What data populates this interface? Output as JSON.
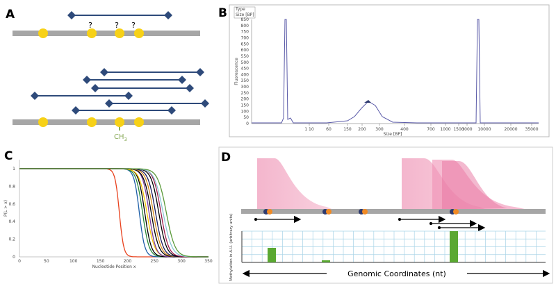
{
  "panels": {
    "a": {
      "label": "A",
      "question_marks": [
        "?",
        "?",
        "?"
      ],
      "methyl": {
        "base": "CH",
        "subscript": "3"
      }
    },
    "b": {
      "label": "B",
      "legend": [
        "Type",
        "Size [BP]"
      ],
      "y_label": "Fluorescence",
      "x_label": "Size [BP]",
      "yticks": [
        "0",
        "50",
        "100",
        "150",
        "200",
        "250",
        "300",
        "350",
        "400",
        "450",
        "500",
        "550",
        "600",
        "650",
        "700",
        "750",
        "800",
        "850"
      ],
      "xticks": [
        "1 10",
        "60",
        "150",
        "200",
        "300",
        "400",
        "700",
        "1000",
        "1500",
        "3000",
        "10000",
        "20000",
        "35000"
      ]
    },
    "c": {
      "label": "C",
      "y_label": "P(L > x)",
      "x_label": "Nucleotide Position x",
      "yticks": [
        "0",
        "0.2",
        "0.4",
        "0.6",
        "0.8",
        "1"
      ],
      "xticks": [
        "0",
        "50",
        "100",
        "150",
        "200",
        "250",
        "300",
        "350"
      ]
    },
    "d": {
      "label": "D",
      "y_label": "Methylation in A.U. (arbitrary units)",
      "x_label": "Genomic Coordinates (nt)"
    }
  }
}
